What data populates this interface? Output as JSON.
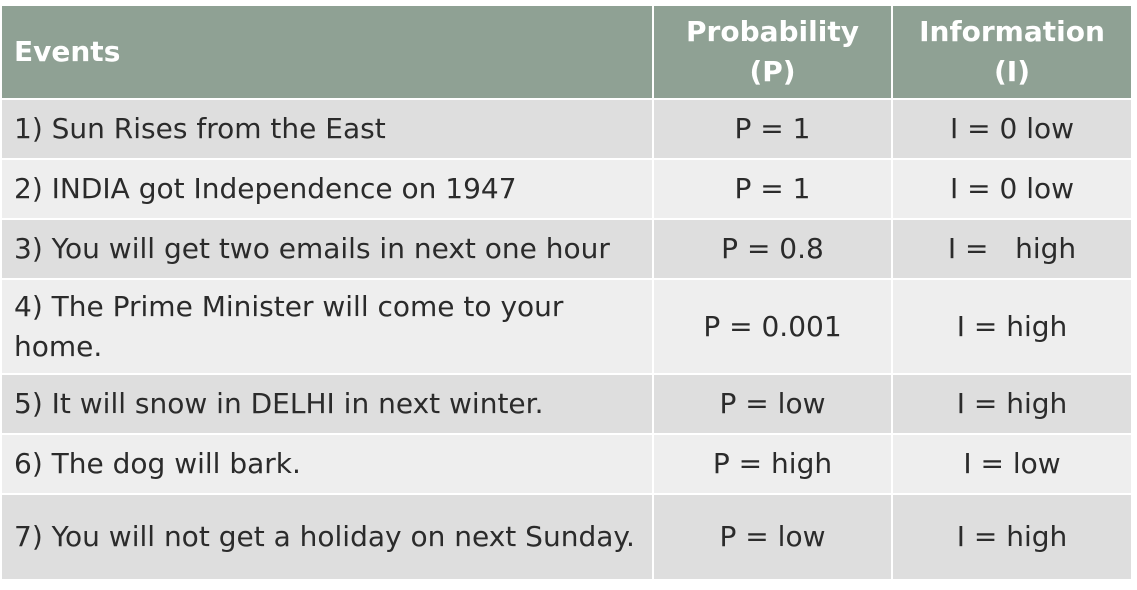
{
  "table": {
    "headers": {
      "events": "Events",
      "probability": "Probability (P)",
      "information": "Information (I)"
    },
    "rows": [
      {
        "event": "1) Sun Rises from the East",
        "p": "P = 1",
        "i": "I = 0 low"
      },
      {
        "event": "2) INDIA got Independence on 1947",
        "p": "P = 1",
        "i": "I = 0 low"
      },
      {
        "event": "3) You will get two emails in next one hour",
        "p": "P = 0.8",
        "i": "I =   high"
      },
      {
        "event": "4) The Prime Minister will come to your home.",
        "p": "P = 0.001",
        "i": "I = high"
      },
      {
        "event": "5) It will snow in DELHI in next winter.",
        "p": "P = low",
        "i": "I = high"
      },
      {
        "event": "6) The dog will bark.",
        "p": "P = high",
        "i": "I = low"
      },
      {
        "event": "7) You will not get a holiday on next Sunday.",
        "p": "P = low",
        "i": "I = high"
      }
    ]
  }
}
